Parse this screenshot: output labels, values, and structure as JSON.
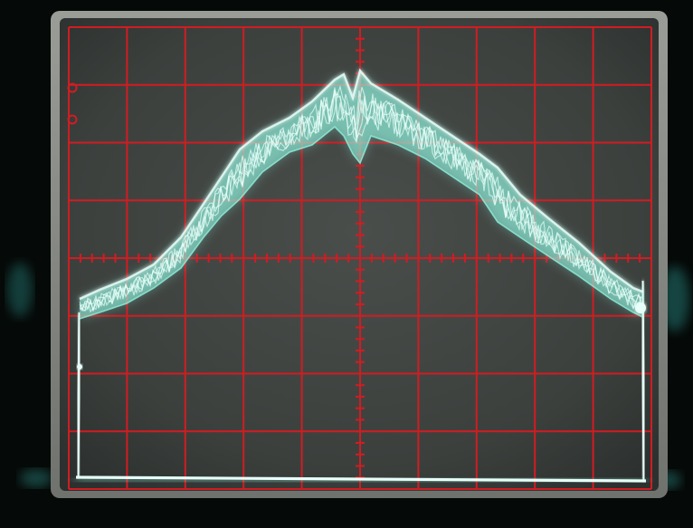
{
  "scene": {
    "subject": "oscilloscope-screen",
    "colors": {
      "bezel": "#050907",
      "screen": "#3f4340",
      "screen_edge": "#8b8e88",
      "graticule": "#d11c22",
      "trace": "#8ff3df",
      "trace_core": "#e8fff9"
    },
    "graticule": {
      "major_columns": 10,
      "major_rows": 8,
      "minor_per_division": 5
    },
    "markers": [
      {
        "name": "reference-marker-1",
        "color": "#d11c22"
      },
      {
        "name": "reference-marker-2",
        "color": "#d11c22"
      }
    ]
  }
}
